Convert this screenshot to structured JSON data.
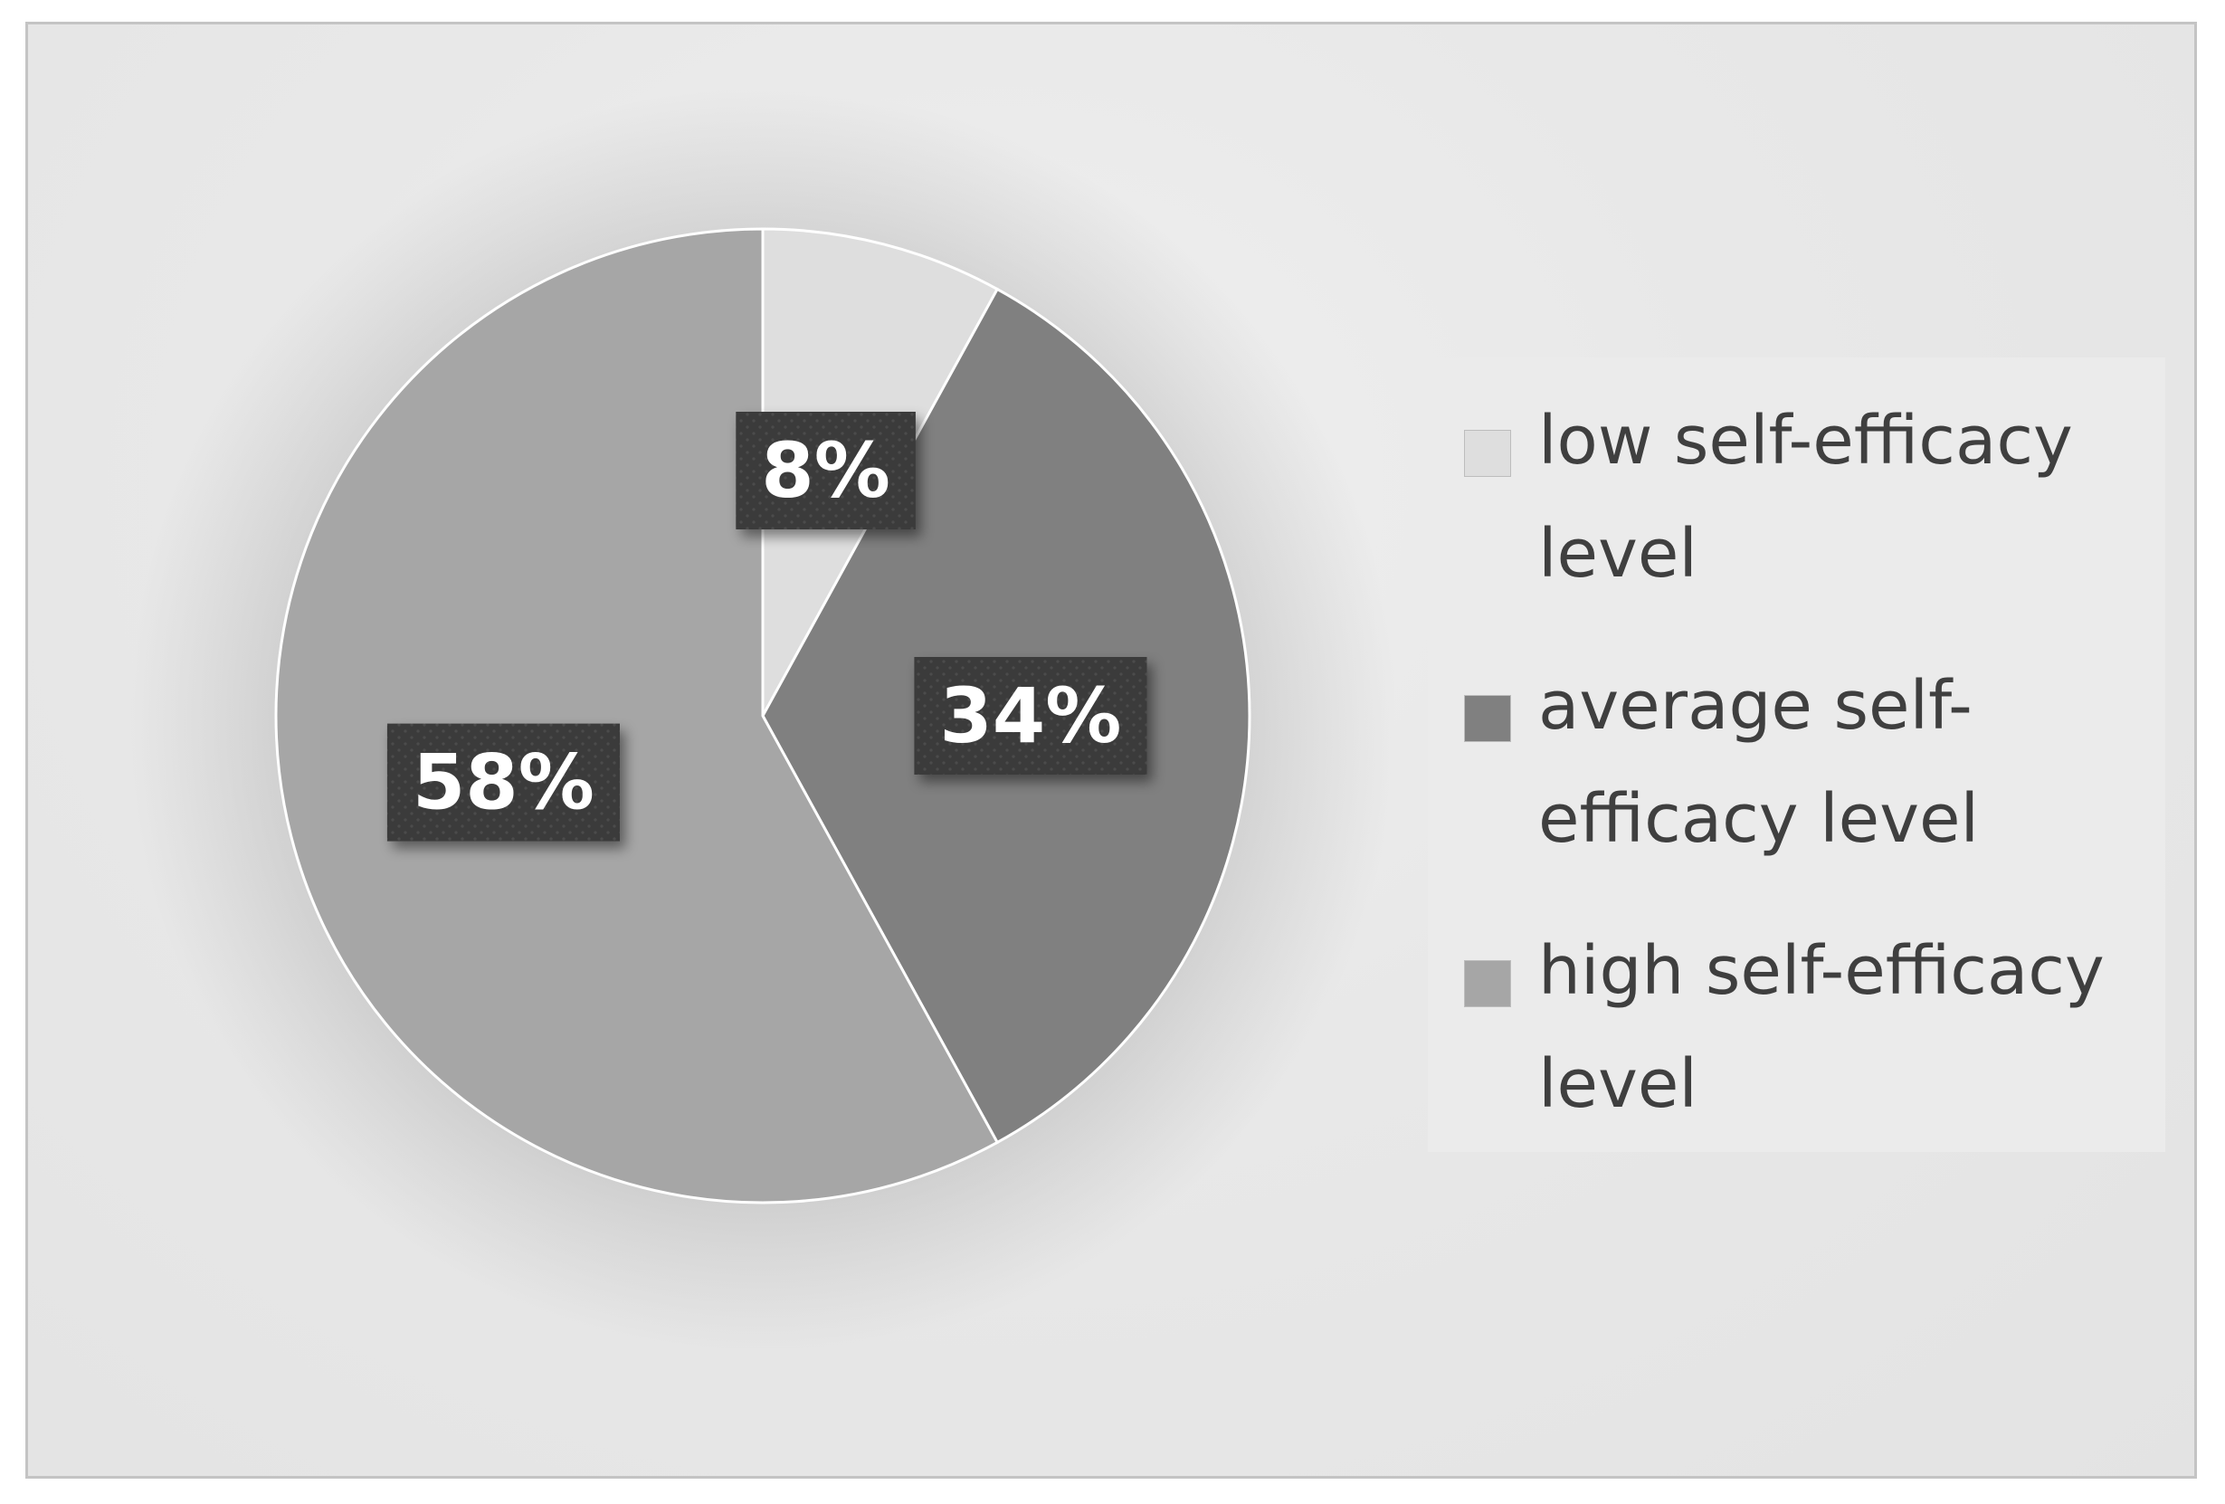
{
  "chart_data": {
    "type": "pie",
    "title": "",
    "categories": [
      "low self-efficacy level",
      "average self-efficacy level",
      "high self-efficacy level"
    ],
    "values": [
      8,
      34,
      58
    ],
    "unit": "%",
    "data_labels": [
      "8%",
      "34%",
      "58%"
    ],
    "start_angle_deg": 0,
    "direction": "clockwise",
    "legend_position": "right",
    "colors": [
      "#dedede",
      "#808080",
      "#a6a6a6"
    ],
    "data_label_background": "#3a3a3a",
    "background_color": "#e6e6e6"
  },
  "legend": {
    "items": [
      {
        "label": "low self-efficacy level",
        "color": "#dedede"
      },
      {
        "label": "average self-efficacy level",
        "color": "#808080"
      },
      {
        "label": "high self-efficacy level",
        "color": "#a6a6a6"
      }
    ]
  }
}
